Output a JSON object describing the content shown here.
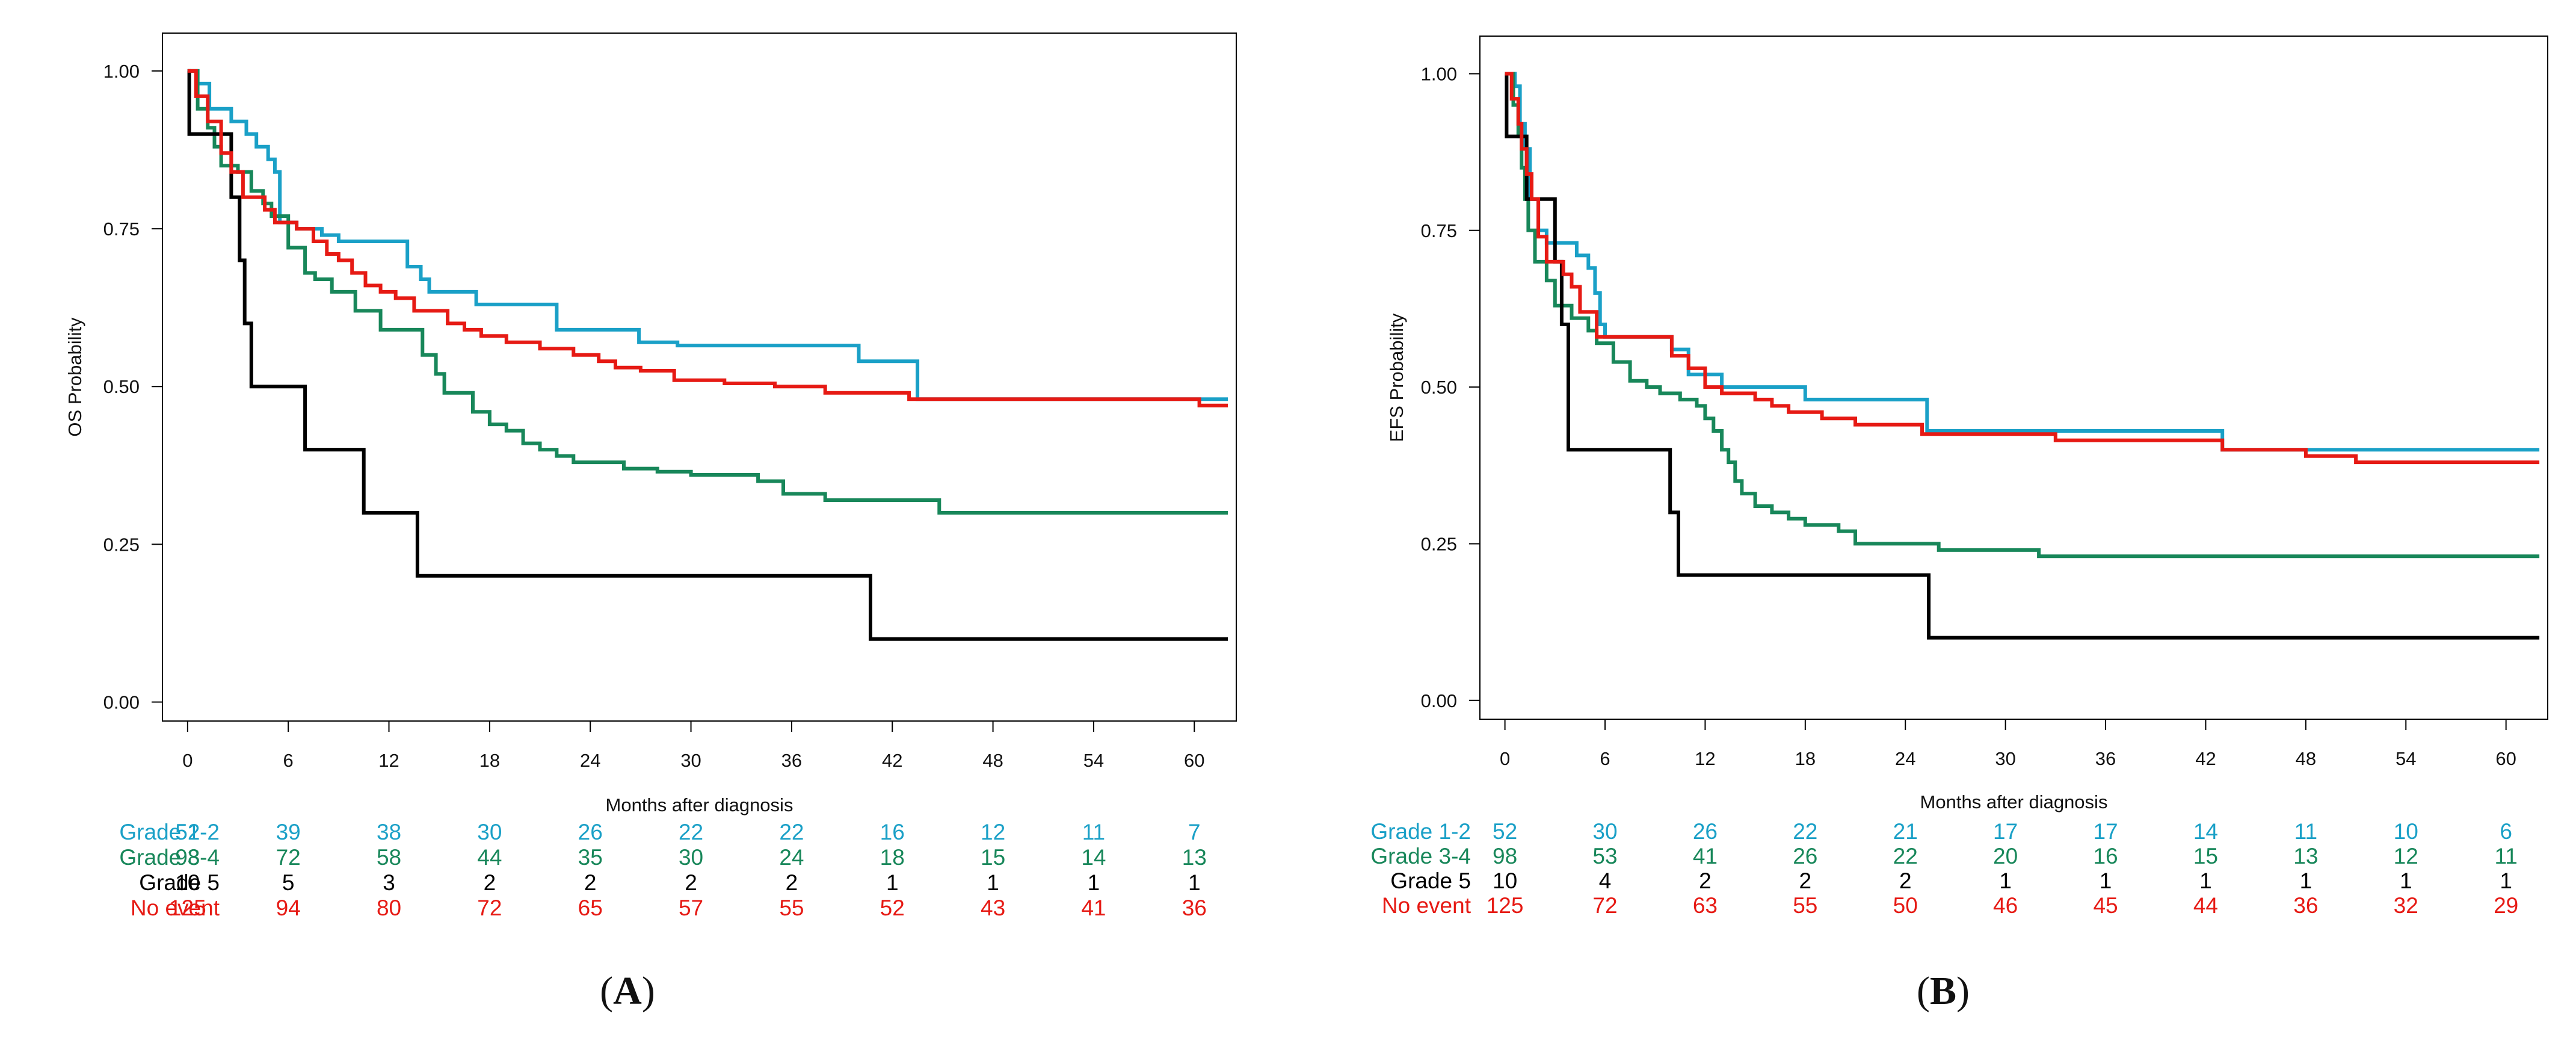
{
  "chart_data": [
    {
      "type": "line",
      "step": true,
      "panel_label": "A",
      "ylabel": "OS Probability",
      "xlabel": "Months after diagnosis",
      "xlim": [
        -1.5,
        62.5
      ],
      "ylim": [
        -0.03,
        1.06
      ],
      "xticks": [
        "0",
        "6",
        "12",
        "18",
        "24",
        "30",
        "36",
        "42",
        "48",
        "54",
        "60"
      ],
      "yticks": [
        "0.00",
        "0.25",
        "0.50",
        "0.75",
        "1.00"
      ],
      "series": [
        {
          "name": "Grade 1-2",
          "color": "#1aa0c7",
          "x": [
            0,
            0.6,
            1.3,
            2.6,
            3.5,
            4.1,
            4.8,
            5.2,
            5.5,
            6.5,
            8,
            9,
            10.2,
            13.1,
            13.9,
            14.4,
            17.2,
            19.7,
            22,
            26.9,
            29.2,
            40,
            43.5,
            62
          ],
          "y": [
            1.0,
            0.98,
            0.94,
            0.92,
            0.9,
            0.88,
            0.86,
            0.84,
            0.76,
            0.75,
            0.74,
            0.73,
            0.73,
            0.69,
            0.67,
            0.65,
            0.63,
            0.63,
            0.59,
            0.57,
            0.565,
            0.54,
            0.48,
            0.48
          ]
        },
        {
          "name": "Grade 3-4",
          "color": "#18875a",
          "x": [
            0,
            0.6,
            1.2,
            1.6,
            2,
            2.5,
            3,
            3.8,
            4.5,
            5,
            6,
            7,
            7.6,
            8.6,
            10,
            11.5,
            14,
            14.8,
            15.3,
            15.9,
            17,
            18,
            19,
            20,
            21,
            22,
            23,
            26,
            28,
            30,
            34,
            35.5,
            38,
            44.8,
            62
          ],
          "y": [
            1.0,
            0.94,
            0.91,
            0.88,
            0.85,
            0.85,
            0.84,
            0.81,
            0.79,
            0.77,
            0.72,
            0.68,
            0.67,
            0.65,
            0.62,
            0.59,
            0.55,
            0.52,
            0.49,
            0.49,
            0.46,
            0.44,
            0.43,
            0.41,
            0.4,
            0.39,
            0.38,
            0.37,
            0.365,
            0.36,
            0.35,
            0.33,
            0.32,
            0.3,
            0.3
          ]
        },
        {
          "name": "Grade 5",
          "color": "#000000",
          "x": [
            0,
            0.1,
            1.4,
            2.6,
            3.1,
            3.4,
            3.8,
            7,
            10.5,
            13.7,
            40.7,
            62
          ],
          "y": [
            1.0,
            0.9,
            0.9,
            0.8,
            0.7,
            0.6,
            0.5,
            0.4,
            0.3,
            0.2,
            0.1,
            0.1
          ]
        },
        {
          "name": "No event",
          "color": "#e61a14",
          "x": [
            0,
            0.5,
            1.2,
            2,
            2.6,
            3.3,
            4.6,
            5.2,
            6.5,
            7.5,
            8.3,
            9,
            9.8,
            10.6,
            11.5,
            12.4,
            13.5,
            15.5,
            16.5,
            17.5,
            19,
            21,
            23,
            24.5,
            25.5,
            27,
            29,
            32,
            35,
            38,
            43,
            60.3,
            62
          ],
          "y": [
            1.0,
            0.96,
            0.92,
            0.87,
            0.84,
            0.8,
            0.78,
            0.76,
            0.75,
            0.73,
            0.71,
            0.7,
            0.68,
            0.66,
            0.65,
            0.64,
            0.62,
            0.6,
            0.59,
            0.58,
            0.57,
            0.56,
            0.55,
            0.54,
            0.53,
            0.525,
            0.51,
            0.505,
            0.5,
            0.49,
            0.48,
            0.47,
            0.47
          ]
        }
      ],
      "risk_table": {
        "times": [
          0,
          6,
          12,
          18,
          24,
          30,
          36,
          42,
          48,
          54,
          60
        ],
        "rows": [
          {
            "label": "Grade 1-2",
            "color": "#1aa0c7",
            "values": [
              "52",
              "39",
              "38",
              "30",
              "26",
              "22",
              "22",
              "16",
              "12",
              "11",
              "7"
            ]
          },
          {
            "label": "Grade 3-4",
            "color": "#18875a",
            "values": [
              "98",
              "72",
              "58",
              "44",
              "35",
              "30",
              "24",
              "18",
              "15",
              "14",
              "13"
            ]
          },
          {
            "label": "Grade 5",
            "color": "#000000",
            "values": [
              "10",
              "5",
              "3",
              "2",
              "2",
              "2",
              "2",
              "1",
              "1",
              "1",
              "1"
            ]
          },
          {
            "label": "No event",
            "color": "#e61a14",
            "values": [
              "125",
              "94",
              "80",
              "72",
              "65",
              "57",
              "55",
              "52",
              "43",
              "41",
              "36"
            ]
          }
        ]
      }
    },
    {
      "type": "line",
      "step": true,
      "panel_label": "B",
      "ylabel": "EFS Probability",
      "xlabel": "Months after diagnosis",
      "xlim": [
        -1.5,
        62.5
      ],
      "ylim": [
        -0.03,
        1.06
      ],
      "xticks": [
        "0",
        "6",
        "12",
        "18",
        "24",
        "30",
        "36",
        "42",
        "48",
        "54",
        "60"
      ],
      "yticks": [
        "0.00",
        "0.25",
        "0.50",
        "0.75",
        "1.00"
      ],
      "series": [
        {
          "name": "Grade 1-2",
          "color": "#1aa0c7",
          "x": [
            0,
            0.6,
            0.9,
            1.2,
            1.5,
            2,
            2.5,
            4.3,
            5,
            5.4,
            5.7,
            6,
            8,
            10,
            11,
            13,
            18,
            25.3,
            43,
            62
          ],
          "y": [
            1.0,
            0.98,
            0.92,
            0.88,
            0.8,
            0.75,
            0.73,
            0.71,
            0.69,
            0.65,
            0.6,
            0.58,
            0.58,
            0.56,
            0.52,
            0.5,
            0.48,
            0.43,
            0.4,
            0.4
          ]
        },
        {
          "name": "Grade 3-4",
          "color": "#18875a",
          "x": [
            0,
            0.5,
            0.8,
            1,
            1.2,
            1.4,
            1.8,
            2.5,
            3,
            4,
            5,
            5.5,
            6.5,
            7.5,
            8.5,
            9.3,
            10.5,
            11.5,
            12,
            12.5,
            13,
            13.4,
            13.8,
            14.2,
            15,
            16,
            17,
            18,
            19,
            20,
            21,
            26,
            32,
            62
          ],
          "y": [
            1.0,
            0.95,
            0.9,
            0.85,
            0.8,
            0.75,
            0.7,
            0.67,
            0.63,
            0.61,
            0.59,
            0.57,
            0.54,
            0.51,
            0.5,
            0.49,
            0.48,
            0.47,
            0.45,
            0.43,
            0.4,
            0.38,
            0.35,
            0.33,
            0.31,
            0.3,
            0.29,
            0.28,
            0.28,
            0.27,
            0.25,
            0.24,
            0.23,
            0.23
          ]
        },
        {
          "name": "Grade 5",
          "color": "#000000",
          "x": [
            0,
            0.1,
            1.3,
            3,
            3.4,
            3.8,
            9.9,
            10.1,
            10.4,
            25.4,
            62
          ],
          "y": [
            1.0,
            0.9,
            0.8,
            0.7,
            0.6,
            0.4,
            0.3,
            0.3,
            0.2,
            0.1,
            0.1
          ]
        },
        {
          "name": "No event",
          "color": "#e61a14",
          "x": [
            0,
            0.4,
            0.8,
            1,
            1.3,
            1.6,
            2,
            2.5,
            3.5,
            4,
            4.5,
            5.5,
            10,
            11,
            12,
            13,
            15,
            16,
            17,
            19,
            21,
            25,
            33,
            43,
            48,
            51,
            62
          ],
          "y": [
            1.0,
            0.96,
            0.92,
            0.88,
            0.84,
            0.8,
            0.74,
            0.7,
            0.68,
            0.66,
            0.62,
            0.58,
            0.55,
            0.53,
            0.5,
            0.49,
            0.48,
            0.47,
            0.46,
            0.45,
            0.44,
            0.425,
            0.415,
            0.4,
            0.39,
            0.38,
            0.38
          ]
        }
      ],
      "risk_table": {
        "times": [
          0,
          6,
          12,
          18,
          24,
          30,
          36,
          42,
          48,
          54,
          60
        ],
        "rows": [
          {
            "label": "Grade 1-2",
            "color": "#1aa0c7",
            "values": [
              "52",
              "30",
              "26",
              "22",
              "21",
              "17",
              "17",
              "14",
              "11",
              "10",
              "6"
            ]
          },
          {
            "label": "Grade 3-4",
            "color": "#18875a",
            "values": [
              "98",
              "53",
              "41",
              "26",
              "22",
              "20",
              "16",
              "15",
              "13",
              "12",
              "11"
            ]
          },
          {
            "label": "Grade 5",
            "color": "#000000",
            "values": [
              "10",
              "4",
              "2",
              "2",
              "2",
              "1",
              "1",
              "1",
              "1",
              "1",
              "1"
            ]
          },
          {
            "label": "No event",
            "color": "#e61a14",
            "values": [
              "125",
              "72",
              "63",
              "55",
              "50",
              "46",
              "45",
              "44",
              "36",
              "32",
              "29"
            ]
          }
        ]
      }
    }
  ]
}
